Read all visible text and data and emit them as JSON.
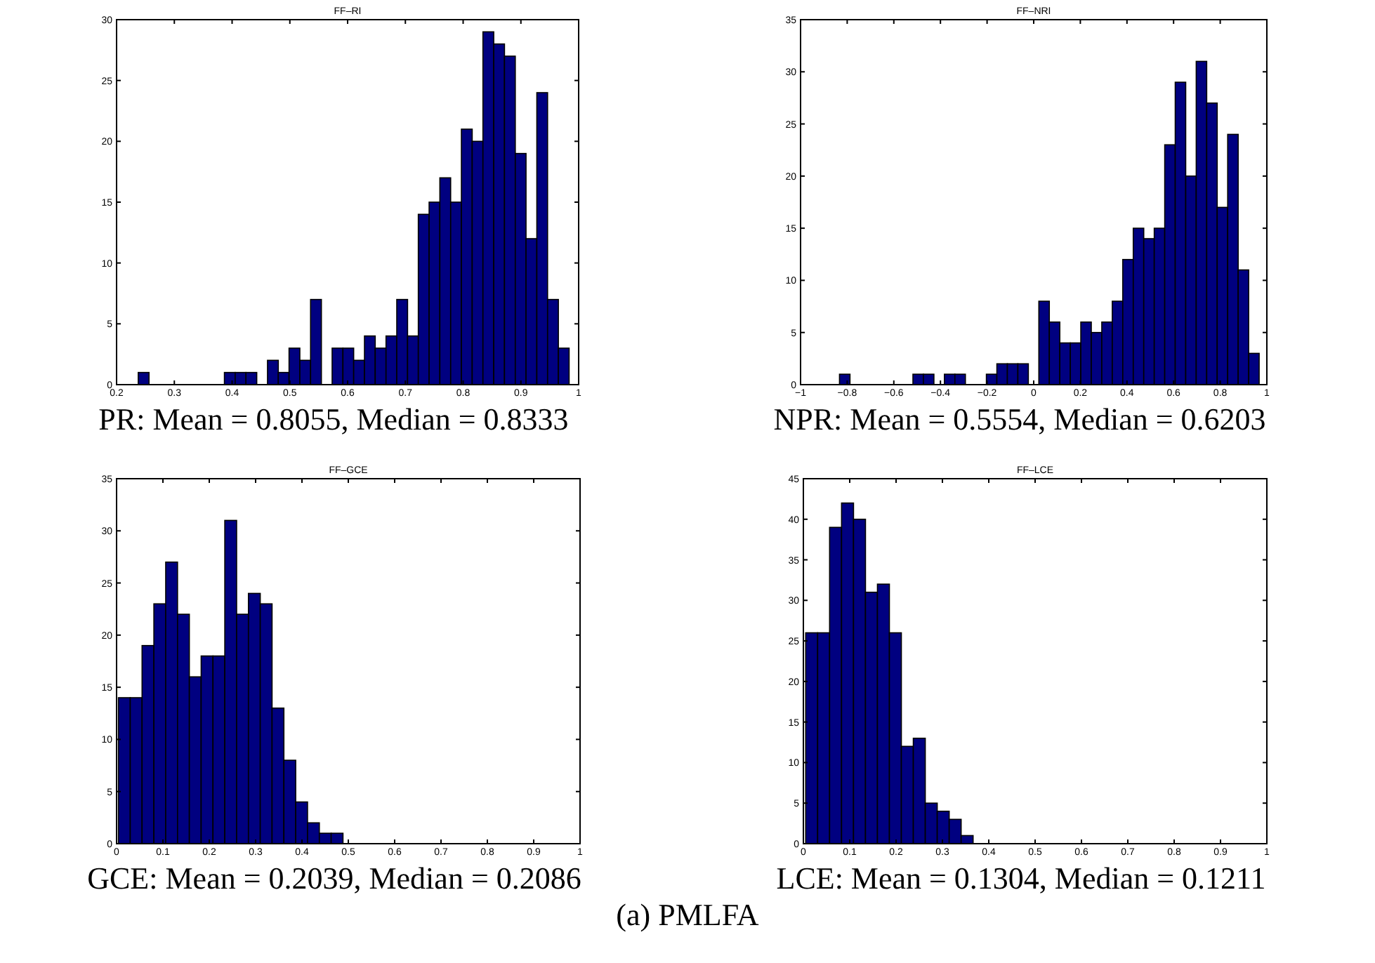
{
  "chart_data": [
    {
      "type": "histogram",
      "title": "FF–RI",
      "color": "#000080",
      "bins": [
        0.2375,
        0.2562,
        0.2748,
        0.2935,
        0.3121,
        0.3308,
        0.3494,
        0.3681,
        0.3867,
        0.4054,
        0.424,
        0.4427,
        0.4613,
        0.48,
        0.4986,
        0.5173,
        0.5359,
        0.5546,
        0.5732,
        0.5919,
        0.6105,
        0.6292,
        0.6478,
        0.6665,
        0.6851,
        0.7038,
        0.7224,
        0.7411,
        0.7597,
        0.7784,
        0.797,
        0.8157,
        0.8343,
        0.853,
        0.8716,
        0.8903,
        0.9089,
        0.9276,
        0.9462,
        0.9649,
        0.9835
      ],
      "values": [
        1,
        0,
        0,
        0,
        0,
        0,
        0,
        0,
        1,
        1,
        1,
        0,
        2,
        1,
        3,
        2,
        7,
        0,
        3,
        3,
        2,
        4,
        3,
        4,
        7,
        4,
        14,
        15,
        17,
        15,
        21,
        20,
        29,
        28,
        27,
        19,
        12,
        24,
        7,
        3
      ],
      "xlim": [
        0.2,
        1
      ],
      "xticks": [
        0.2,
        0.3,
        0.4,
        0.5,
        0.6,
        0.7,
        0.8,
        0.9,
        1
      ],
      "ylim": [
        0,
        30
      ],
      "yticks": [
        0,
        5,
        10,
        15,
        20,
        25,
        30
      ],
      "annotations": [
        "PR: Mean = 0.8055, Median = 0.8333"
      ]
    },
    {
      "type": "histogram",
      "title": "FF–NRI",
      "color": "#000080",
      "bins": [
        -0.833,
        -0.788,
        -0.743,
        -0.698,
        -0.653,
        -0.608,
        -0.563,
        -0.518,
        -0.473,
        -0.428,
        -0.383,
        -0.338,
        -0.293,
        -0.248,
        -0.203,
        -0.158,
        -0.113,
        -0.068,
        -0.023,
        0.022,
        0.067,
        0.112,
        0.157,
        0.202,
        0.247,
        0.292,
        0.337,
        0.382,
        0.427,
        0.472,
        0.517,
        0.562,
        0.607,
        0.652,
        0.697,
        0.742,
        0.787,
        0.832,
        0.877,
        0.922,
        0.967
      ],
      "values": [
        1,
        0,
        0,
        0,
        0,
        0,
        0,
        1,
        1,
        0,
        1,
        1,
        0,
        0,
        1,
        2,
        2,
        2,
        0,
        8,
        6,
        4,
        4,
        6,
        5,
        6,
        8,
        12,
        15,
        14,
        15,
        23,
        29,
        20,
        31,
        27,
        17,
        24,
        11,
        3
      ],
      "xlim": [
        -1,
        1
      ],
      "xticks": [
        -1,
        -0.8,
        -0.6,
        -0.4,
        -0.2,
        0,
        0.2,
        0.4,
        0.6,
        0.8,
        1
      ],
      "ylim": [
        0,
        35
      ],
      "yticks": [
        0,
        5,
        10,
        15,
        20,
        25,
        30,
        35
      ],
      "annotations": [
        "NPR: Mean = 0.5554, Median = 0.6203"
      ]
    },
    {
      "type": "histogram",
      "title": "FF–GCE",
      "color": "#000080",
      "bins": [
        0.004,
        0.0295,
        0.055,
        0.0805,
        0.106,
        0.1315,
        0.157,
        0.1825,
        0.208,
        0.2335,
        0.259,
        0.2845,
        0.31,
        0.3355,
        0.361,
        0.3865,
        0.412,
        0.4375,
        0.463,
        0.4885
      ],
      "values": [
        14,
        14,
        19,
        23,
        27,
        22,
        16,
        18,
        18,
        31,
        22,
        24,
        23,
        13,
        8,
        4,
        2,
        1,
        1
      ],
      "xlim": [
        0,
        1
      ],
      "xticks": [
        0,
        0.1,
        0.2,
        0.3,
        0.4,
        0.5,
        0.6,
        0.7,
        0.8,
        0.9,
        1
      ],
      "ylim": [
        0,
        35
      ],
      "yticks": [
        0,
        5,
        10,
        15,
        20,
        25,
        30,
        35
      ],
      "annotations": [
        "GCE: Mean = 0.2039, Median = 0.2086"
      ]
    },
    {
      "type": "histogram",
      "title": "FF–LCE",
      "color": "#000080",
      "bins": [
        0.005,
        0.0308,
        0.0566,
        0.0824,
        0.1082,
        0.134,
        0.1598,
        0.1856,
        0.2114,
        0.2372,
        0.263,
        0.2888,
        0.3146,
        0.3404,
        0.3662
      ],
      "values": [
        26,
        26,
        39,
        42,
        40,
        31,
        32,
        26,
        12,
        13,
        5,
        4,
        3,
        1
      ],
      "xlim": [
        0,
        1
      ],
      "xticks": [
        0,
        0.1,
        0.2,
        0.3,
        0.4,
        0.5,
        0.6,
        0.7,
        0.8,
        0.9,
        1
      ],
      "ylim": [
        0,
        45
      ],
      "yticks": [
        0,
        5,
        10,
        15,
        20,
        25,
        30,
        35,
        40,
        45
      ],
      "annotations": [
        "LCE: Mean = 0.1304, Median = 0.1211",
        "(a) PMLFA"
      ]
    }
  ]
}
